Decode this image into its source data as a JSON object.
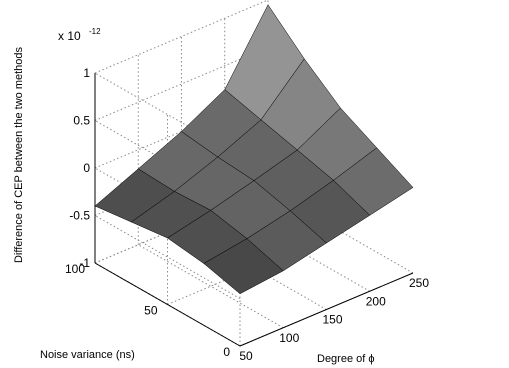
{
  "chart_data": {
    "type": "surface",
    "title": "",
    "xlabel": "Degree of ϕ",
    "ylabel": "Noise variance (ns)",
    "zlabel": "Difference of CEP between the two methods",
    "z_exponent": "x 10",
    "z_exponent_power": "-12",
    "xlim": [
      50,
      250
    ],
    "ylim": [
      0,
      100
    ],
    "zlim": [
      -1,
      1
    ],
    "x_ticks": [
      "50",
      "100",
      "150",
      "200",
      "250"
    ],
    "y_ticks": [
      "0",
      "50",
      "100"
    ],
    "z_ticks": [
      "-1",
      "-0.5",
      "0",
      "0.5",
      "1"
    ],
    "grid": true,
    "colormap": "gray",
    "x": [
      50,
      100,
      150,
      200,
      250
    ],
    "y": [
      0,
      25,
      50,
      75,
      100
    ],
    "z": [
      [
        -0.45,
        -0.4,
        -0.3,
        -0.2,
        -0.1
      ],
      [
        -0.35,
        -0.28,
        -0.18,
        -0.05,
        0.1
      ],
      [
        -0.3,
        -0.2,
        -0.08,
        0.05,
        0.3
      ],
      [
        -0.35,
        -0.22,
        -0.05,
        0.15,
        0.6
      ],
      [
        -0.4,
        -0.2,
        0.0,
        0.25,
        0.95
      ]
    ]
  },
  "colors": {
    "surface_dark": "#1a1a1a",
    "surface_light": "#bdbdbd",
    "grid": "#8a8a8a",
    "axis": "#000000"
  }
}
